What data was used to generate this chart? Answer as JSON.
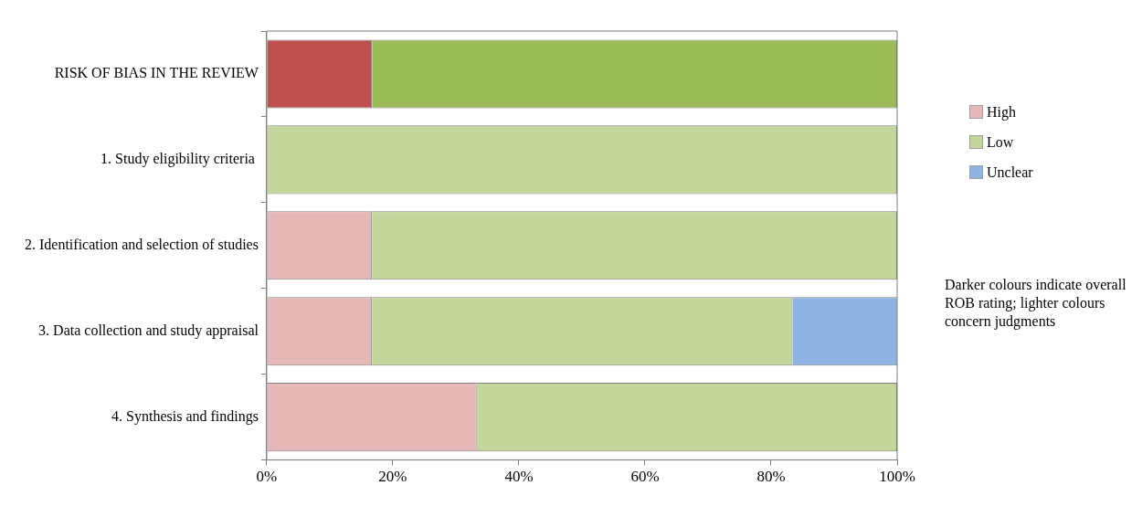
{
  "chart_data": {
    "type": "bar",
    "orientation": "horizontal",
    "stacked": true,
    "categories": [
      "RISK OF BIAS IN THE REVIEW",
      "1. Study eligibility criteria ",
      "2. Identification and selection of studies",
      "3. Data collection and study appraisal",
      "4. Synthesis and findings"
    ],
    "series": [
      {
        "name": "High",
        "color": "#e6b9b8",
        "colors": [
          "#c0504d",
          "#e6b9b8",
          "#e6b9b8",
          "#e6b9b8",
          "#e6b9b8"
        ],
        "values": [
          16.7,
          null,
          16.7,
          16.7,
          33.3
        ]
      },
      {
        "name": "Low",
        "color": "#c3d69b",
        "colors": [
          "#9bbb59",
          "#c3d69b",
          "#c3d69b",
          "#c3d69b",
          "#c3d69b"
        ],
        "values": [
          83.3,
          100,
          83.3,
          66.7,
          66.7
        ]
      },
      {
        "name": "Unclear",
        "color": "#8db3e2",
        "colors": [
          "#8db3e2",
          "#8db3e2",
          "#8db3e2",
          "#8db3e2",
          "#8db3e2"
        ],
        "values": [
          null,
          null,
          null,
          16.7,
          null
        ]
      }
    ],
    "xlim": [
      0,
      100
    ],
    "xticks": [
      {
        "value": 0,
        "label": "0%"
      },
      {
        "value": 20,
        "label": "20%"
      },
      {
        "value": 40,
        "label": "40%"
      },
      {
        "value": 60,
        "label": "60%"
      },
      {
        "value": 80,
        "label": "80%"
      },
      {
        "value": 100,
        "label": "100%"
      }
    ],
    "grid": false,
    "legend": "right",
    "annotations": [
      "Darker colours indicate overall ROB rating; lighter colours concern judgments"
    ]
  }
}
